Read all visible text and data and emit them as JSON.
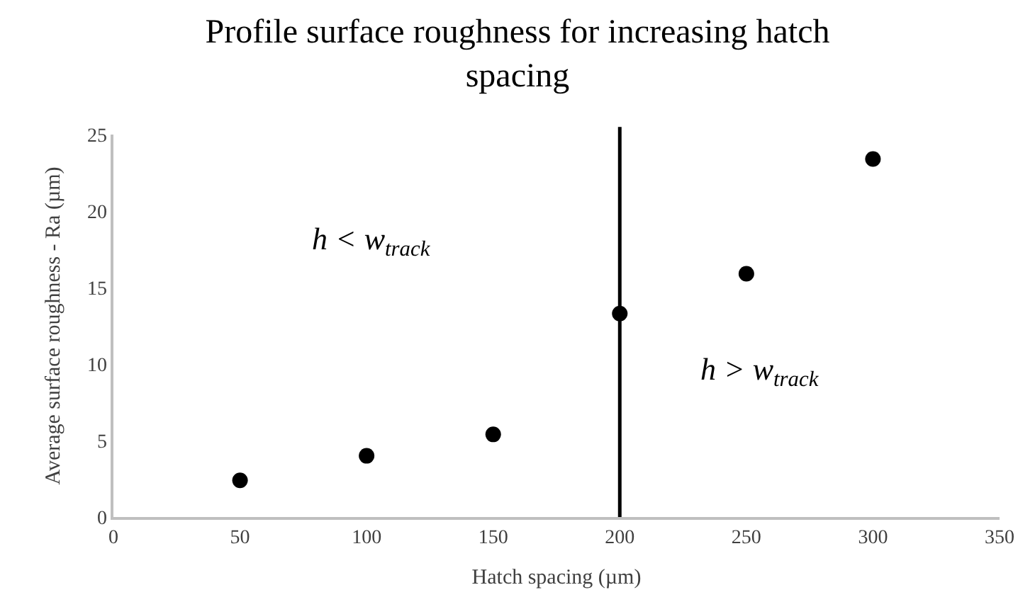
{
  "chart_data": {
    "type": "scatter",
    "title": "Profile surface roughness for increasing hatch spacing",
    "xlabel": "Hatch spacing (µm)",
    "ylabel": "Average surface roughness - Ra (µm)",
    "x": [
      50,
      100,
      150,
      200,
      250,
      300
    ],
    "values": [
      2.4,
      4.0,
      5.4,
      13.3,
      15.9,
      23.4
    ],
    "color": "#000000",
    "marker": "circle",
    "xlim": [
      0,
      350
    ],
    "xticks": [
      0,
      50,
      100,
      150,
      200,
      250,
      300,
      350
    ],
    "ylim": [
      0,
      25
    ],
    "yticks": [
      0,
      5,
      10,
      15,
      20,
      25
    ],
    "legend": false,
    "ref_lines": [
      {
        "axis": "x",
        "value": 200,
        "color": "#000000"
      }
    ],
    "annotations": [
      "h < w$_{track}$",
      "h > w$_{track}$"
    ]
  }
}
